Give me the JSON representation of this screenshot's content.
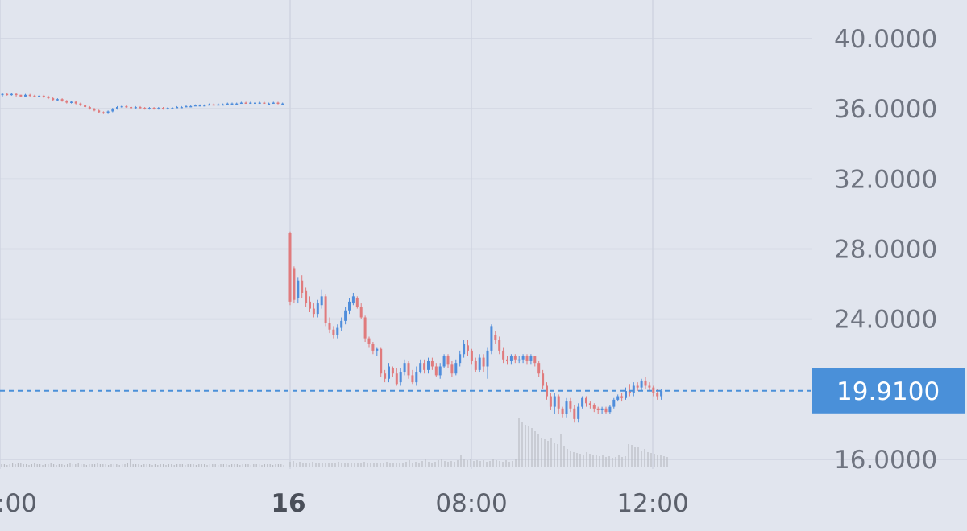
{
  "chart_data": {
    "type": "candlestick",
    "y_ticks": [
      "40.0000",
      "36.0000",
      "32.0000",
      "28.0000",
      "24.0000",
      "16.0000"
    ],
    "y_tick_values": [
      40,
      36,
      32,
      28,
      24,
      16
    ],
    "x_ticks": [
      ":00",
      "16",
      "08:00",
      "12:00"
    ],
    "ylim": [
      15.4,
      42.1
    ],
    "current_price": 19.91,
    "current_price_label": "19.9100",
    "grid": true,
    "colors": {
      "background": "#e1e5ee",
      "grid": "#cfd4e0",
      "up": "#4f8ddb",
      "down": "#e07b7d",
      "price_line": "#4a90d9",
      "price_tag": "#4a90d9",
      "volume": "#b9bcc3"
    },
    "day1_candles": [
      [
        36.8,
        36.85,
        36.7,
        36.9
      ],
      [
        36.85,
        36.8,
        36.75,
        36.9
      ],
      [
        36.8,
        36.85,
        36.75,
        36.9
      ],
      [
        36.85,
        36.8,
        36.7,
        36.9
      ],
      [
        36.8,
        36.7,
        36.65,
        36.8
      ],
      [
        36.7,
        36.8,
        36.65,
        36.85
      ],
      [
        36.8,
        36.75,
        36.7,
        36.85
      ],
      [
        36.75,
        36.7,
        36.65,
        36.8
      ],
      [
        36.7,
        36.75,
        36.65,
        36.8
      ],
      [
        36.75,
        36.7,
        36.6,
        36.8
      ],
      [
        36.7,
        36.6,
        36.55,
        36.75
      ],
      [
        36.6,
        36.5,
        36.45,
        36.65
      ],
      [
        36.5,
        36.55,
        36.45,
        36.6
      ],
      [
        36.55,
        36.45,
        36.4,
        36.6
      ],
      [
        36.45,
        36.35,
        36.3,
        36.5
      ],
      [
        36.35,
        36.4,
        36.3,
        36.45
      ],
      [
        36.4,
        36.3,
        36.25,
        36.45
      ],
      [
        36.3,
        36.2,
        36.15,
        36.35
      ],
      [
        36.2,
        36.1,
        36.05,
        36.25
      ],
      [
        36.1,
        36.0,
        35.95,
        36.15
      ],
      [
        36.0,
        35.9,
        35.85,
        36.05
      ],
      [
        35.9,
        35.8,
        35.75,
        35.95
      ],
      [
        35.8,
        35.75,
        35.7,
        35.85
      ],
      [
        35.75,
        35.85,
        35.7,
        35.9
      ],
      [
        35.85,
        36.0,
        35.8,
        36.05
      ],
      [
        36.0,
        36.1,
        35.95,
        36.15
      ],
      [
        36.1,
        36.15,
        36.05,
        36.2
      ],
      [
        36.15,
        36.1,
        36.05,
        36.2
      ],
      [
        36.1,
        36.05,
        36.0,
        36.15
      ],
      [
        36.05,
        36.1,
        36.0,
        36.15
      ],
      [
        36.1,
        36.05,
        36.0,
        36.15
      ],
      [
        36.05,
        36.0,
        35.95,
        36.1
      ],
      [
        36.0,
        36.05,
        35.95,
        36.1
      ],
      [
        36.05,
        36.0,
        35.95,
        36.1
      ],
      [
        36.0,
        36.05,
        35.95,
        36.1
      ],
      [
        36.05,
        36.0,
        35.95,
        36.1
      ],
      [
        36.0,
        36.05,
        35.95,
        36.1
      ],
      [
        36.05,
        36.05,
        36.0,
        36.1
      ],
      [
        36.05,
        36.1,
        36.05,
        36.15
      ],
      [
        36.1,
        36.1,
        36.05,
        36.15
      ],
      [
        36.1,
        36.15,
        36.1,
        36.2
      ],
      [
        36.15,
        36.15,
        36.1,
        36.2
      ],
      [
        36.15,
        36.2,
        36.15,
        36.25
      ],
      [
        36.2,
        36.2,
        36.15,
        36.25
      ],
      [
        36.2,
        36.2,
        36.15,
        36.25
      ],
      [
        36.2,
        36.25,
        36.2,
        36.3
      ],
      [
        36.25,
        36.2,
        36.2,
        36.3
      ],
      [
        36.2,
        36.25,
        36.2,
        36.3
      ],
      [
        36.25,
        36.25,
        36.2,
        36.3
      ],
      [
        36.25,
        36.3,
        36.25,
        36.35
      ],
      [
        36.3,
        36.3,
        36.25,
        36.35
      ],
      [
        36.3,
        36.3,
        36.25,
        36.35
      ],
      [
        36.3,
        36.35,
        36.3,
        36.4
      ],
      [
        36.35,
        36.3,
        36.3,
        36.4
      ],
      [
        36.3,
        36.35,
        36.3,
        36.4
      ],
      [
        36.35,
        36.35,
        36.3,
        36.4
      ],
      [
        36.35,
        36.35,
        36.3,
        36.4
      ],
      [
        36.35,
        36.3,
        36.3,
        36.4
      ],
      [
        36.3,
        36.3,
        36.25,
        36.35
      ],
      [
        36.3,
        36.35,
        36.3,
        36.4
      ],
      [
        36.35,
        36.3,
        36.25,
        36.4
      ],
      [
        36.3,
        36.3,
        36.25,
        36.35
      ]
    ],
    "day2_candles": [
      [
        28.9,
        25.0,
        24.8,
        29.0
      ],
      [
        26.9,
        25.1,
        24.9,
        27.0
      ],
      [
        25.2,
        26.2,
        24.9,
        26.4
      ],
      [
        26.2,
        25.5,
        25.2,
        26.5
      ],
      [
        25.6,
        24.9,
        24.7,
        25.8
      ],
      [
        25.0,
        24.6,
        24.4,
        25.3
      ],
      [
        24.6,
        24.3,
        24.1,
        24.9
      ],
      [
        24.3,
        24.9,
        24.1,
        25.1
      ],
      [
        24.8,
        25.3,
        24.6,
        25.7
      ],
      [
        25.3,
        23.8,
        23.6,
        25.4
      ],
      [
        23.8,
        23.4,
        23.2,
        24.1
      ],
      [
        23.4,
        23.1,
        22.9,
        23.6
      ],
      [
        23.1,
        23.5,
        22.9,
        23.7
      ],
      [
        23.5,
        23.9,
        23.3,
        24.1
      ],
      [
        23.9,
        24.5,
        23.7,
        24.7
      ],
      [
        24.5,
        25.0,
        24.3,
        25.2
      ],
      [
        24.9,
        25.3,
        24.8,
        25.5
      ],
      [
        25.2,
        24.7,
        24.6,
        25.3
      ],
      [
        24.7,
        24.1,
        24.0,
        24.9
      ],
      [
        24.1,
        22.9,
        22.7,
        24.2
      ],
      [
        22.9,
        22.6,
        22.4,
        23.0
      ],
      [
        22.6,
        22.2,
        22.0,
        22.7
      ],
      [
        22.2,
        22.3,
        21.9,
        22.4
      ],
      [
        22.3,
        20.9,
        20.7,
        22.4
      ],
      [
        20.9,
        20.6,
        20.4,
        21.1
      ],
      [
        20.6,
        21.3,
        20.4,
        21.5
      ],
      [
        21.2,
        20.9,
        20.7,
        21.3
      ],
      [
        20.9,
        20.3,
        20.2,
        21.2
      ],
      [
        20.4,
        21.0,
        20.2,
        21.2
      ],
      [
        21.0,
        21.5,
        20.8,
        21.7
      ],
      [
        21.5,
        20.8,
        20.6,
        21.6
      ],
      [
        20.8,
        20.4,
        20.3,
        21.1
      ],
      [
        20.4,
        21.0,
        20.2,
        21.3
      ],
      [
        21.0,
        21.5,
        20.9,
        21.7
      ],
      [
        21.5,
        21.1,
        20.9,
        21.7
      ],
      [
        21.1,
        21.6,
        20.9,
        21.8
      ],
      [
        21.6,
        21.3,
        21.1,
        21.8
      ],
      [
        21.3,
        20.8,
        20.7,
        21.5
      ],
      [
        20.8,
        21.3,
        20.6,
        21.5
      ],
      [
        21.3,
        21.9,
        21.2,
        22.0
      ],
      [
        21.9,
        21.4,
        21.2,
        22.0
      ],
      [
        21.4,
        20.9,
        20.7,
        21.6
      ],
      [
        20.9,
        21.5,
        20.8,
        21.7
      ],
      [
        21.5,
        22.0,
        21.3,
        22.2
      ],
      [
        22.0,
        22.6,
        21.8,
        22.8
      ],
      [
        22.5,
        22.2,
        21.9,
        22.8
      ],
      [
        22.2,
        21.6,
        21.4,
        22.3
      ],
      [
        21.6,
        21.1,
        21.0,
        21.8
      ],
      [
        21.1,
        21.8,
        21.0,
        22.0
      ],
      [
        21.8,
        21.3,
        21.0,
        22.0
      ],
      [
        21.3,
        22.2,
        20.6,
        22.4
      ],
      [
        22.2,
        23.6,
        22.0,
        23.7
      ],
      [
        23.1,
        22.8,
        22.6,
        23.3
      ],
      [
        22.8,
        22.2,
        22.0,
        23.0
      ],
      [
        22.2,
        21.7,
        21.5,
        22.4
      ],
      [
        21.7,
        21.6,
        21.4,
        21.9
      ],
      [
        21.6,
        21.9,
        21.4,
        22.0
      ],
      [
        21.9,
        21.7,
        21.5,
        22.0
      ],
      [
        21.7,
        21.7,
        21.5,
        21.9
      ],
      [
        21.7,
        21.9,
        21.5,
        22.0
      ],
      [
        21.9,
        21.6,
        21.4,
        22.0
      ],
      [
        21.6,
        21.9,
        21.4,
        22.0
      ],
      [
        21.9,
        21.5,
        21.3,
        21.9
      ],
      [
        21.5,
        20.9,
        20.7,
        21.6
      ],
      [
        20.9,
        20.2,
        20.0,
        21.1
      ],
      [
        20.2,
        19.6,
        19.4,
        20.4
      ],
      [
        19.6,
        19.0,
        18.8,
        19.8
      ],
      [
        19.0,
        19.6,
        18.6,
        19.8
      ],
      [
        19.6,
        18.9,
        18.6,
        19.7
      ],
      [
        18.9,
        18.6,
        18.4,
        19.0
      ],
      [
        18.6,
        19.3,
        18.4,
        19.5
      ],
      [
        19.3,
        18.9,
        18.7,
        19.5
      ],
      [
        18.9,
        18.3,
        18.1,
        19.1
      ],
      [
        18.3,
        19.0,
        18.1,
        19.2
      ],
      [
        19.0,
        19.5,
        18.9,
        19.6
      ],
      [
        19.5,
        19.2,
        19.0,
        19.6
      ],
      [
        19.2,
        19.1,
        18.9,
        19.3
      ],
      [
        19.1,
        18.9,
        18.7,
        19.2
      ],
      [
        18.9,
        18.8,
        18.6,
        19.0
      ],
      [
        18.8,
        18.9,
        18.6,
        19.0
      ],
      [
        18.9,
        18.7,
        18.6,
        19.0
      ],
      [
        18.7,
        19.0,
        18.6,
        19.1
      ],
      [
        19.0,
        19.4,
        18.9,
        19.5
      ],
      [
        19.4,
        19.6,
        19.3,
        19.7
      ],
      [
        19.6,
        19.5,
        19.3,
        19.8
      ],
      [
        19.5,
        19.9,
        19.4,
        20.1
      ],
      [
        19.9,
        19.8,
        19.6,
        20.3
      ],
      [
        19.8,
        20.2,
        19.6,
        20.4
      ],
      [
        20.2,
        20.1,
        19.9,
        20.4
      ],
      [
        20.1,
        20.5,
        19.9,
        20.6
      ],
      [
        20.5,
        20.2,
        20.0,
        20.7
      ],
      [
        20.2,
        20.1,
        19.9,
        20.4
      ],
      [
        20.1,
        19.8,
        19.6,
        20.2
      ],
      [
        19.8,
        19.6,
        19.4,
        20.0
      ],
      [
        19.6,
        19.9,
        19.4,
        20.0
      ]
    ],
    "volumes_day1": [
      3,
      3,
      2,
      3,
      4,
      3,
      5,
      4,
      3,
      3,
      2,
      3,
      4,
      3,
      3,
      2,
      3,
      3,
      4,
      3,
      2,
      3,
      3,
      2,
      3,
      4,
      3,
      3,
      4,
      3,
      3,
      2,
      3,
      3,
      3,
      4,
      3,
      3,
      3,
      2,
      3,
      3,
      3,
      2,
      3,
      3,
      4,
      9,
      3,
      3,
      3,
      2,
      3,
      3,
      3,
      2,
      3,
      2,
      3,
      3,
      2,
      3,
      3,
      2,
      3,
      3,
      3,
      2,
      3,
      3,
      3,
      2,
      3,
      3,
      3,
      2,
      3,
      3,
      3,
      2,
      3,
      3,
      3,
      2,
      3,
      3,
      3,
      2,
      3,
      3,
      3,
      2,
      3,
      3,
      3,
      2,
      3,
      3,
      3,
      2,
      3,
      3,
      3,
      2
    ],
    "volumes_day2": [
      6,
      7,
      5,
      6,
      5,
      4,
      5,
      6,
      5,
      4,
      5,
      4,
      5,
      4,
      5,
      6,
      5,
      4,
      5,
      4,
      5,
      4,
      5,
      6,
      5,
      4,
      5,
      4,
      5,
      5,
      6,
      5,
      4,
      5,
      4,
      5,
      6,
      8,
      5,
      6,
      5,
      7,
      9,
      6,
      5,
      6,
      8,
      10,
      7,
      6,
      7,
      6,
      8,
      14,
      10,
      8,
      9,
      7,
      8,
      7,
      8,
      6,
      7,
      9,
      8,
      7,
      6,
      8,
      6,
      7,
      10,
      60,
      55,
      52,
      50,
      48,
      44,
      40,
      36,
      34,
      32,
      36,
      30,
      28,
      40,
      26,
      22,
      20,
      18,
      17,
      16,
      15,
      18,
      16,
      14,
      15,
      13,
      14,
      12,
      13,
      11,
      12,
      14,
      12,
      13,
      28,
      27,
      25,
      24,
      20,
      22,
      18,
      17,
      16,
      15,
      14,
      13,
      12
    ]
  }
}
